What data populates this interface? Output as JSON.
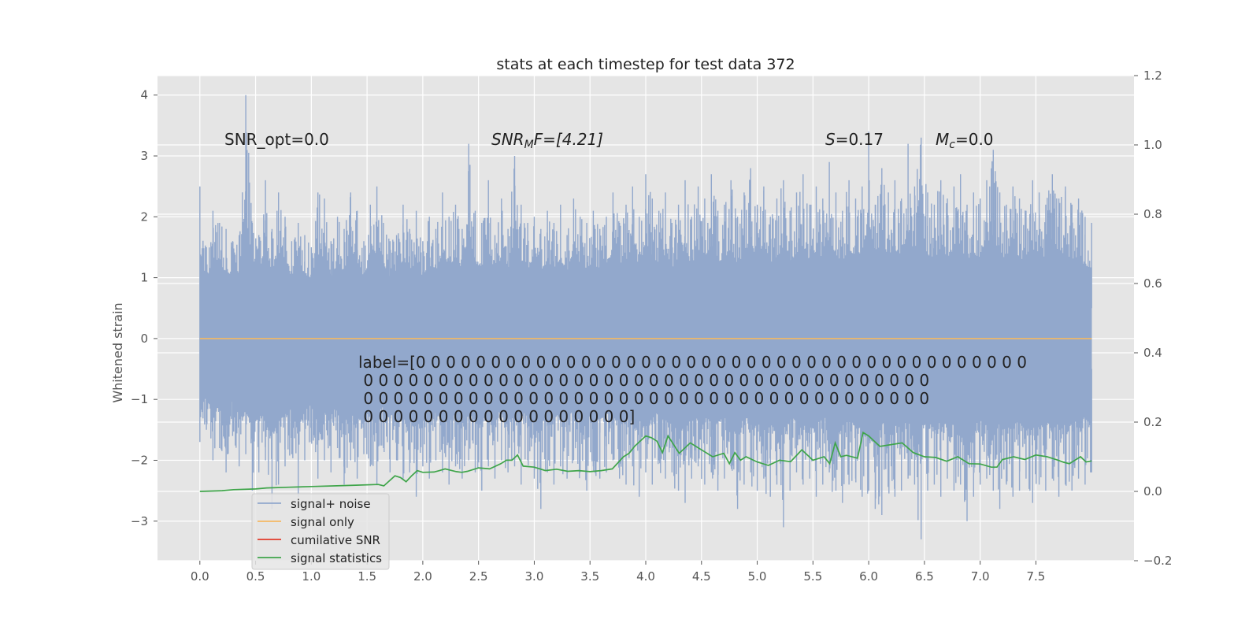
{
  "chart_data": {
    "type": "line",
    "title": "stats at each timestep for test data 372",
    "xlabel": "",
    "ylabel": "Whitened strain",
    "xlim": [
      -0.38,
      8.38
    ],
    "ylim": [
      -3.65,
      4.32
    ],
    "y2lim": [
      -0.2,
      1.2
    ],
    "x_ticks": [
      0.0,
      0.5,
      1.0,
      1.5,
      2.0,
      2.5,
      3.0,
      3.5,
      4.0,
      4.5,
      5.0,
      5.5,
      6.0,
      6.5,
      7.0,
      7.5
    ],
    "x_tick_labels": [
      "0.0",
      "0.5",
      "1.0",
      "1.5",
      "2.0",
      "2.5",
      "3.0",
      "3.5",
      "4.0",
      "4.5",
      "5.0",
      "5.5",
      "6.0",
      "6.5",
      "7.0",
      "7.5"
    ],
    "y_ticks": [
      -3,
      -2,
      -1,
      0,
      1,
      2,
      3,
      4
    ],
    "y_tick_labels": [
      "−3",
      "−2",
      "−1",
      "0",
      "1",
      "2",
      "3",
      "4"
    ],
    "y2_ticks": [
      -0.2,
      0.0,
      0.2,
      0.4,
      0.6,
      0.8,
      1.0,
      1.2
    ],
    "y2_tick_labels": [
      "−0.2",
      "0.0",
      "0.2",
      "0.4",
      "0.6",
      "0.8",
      "1.0",
      "1.2"
    ],
    "grid": true,
    "legend_position": "lower-left",
    "series": [
      {
        "name": "signal+ noise",
        "color": "#92a8cc",
        "axis": "left",
        "x_range": [
          0.0,
          8.0
        ],
        "envelope_upper": [
          2.5,
          1.5,
          2.1,
          1.9,
          1.8,
          1.6,
          1.7,
          4.0,
          1.9,
          1.7,
          2.6,
          1.8,
          2.4,
          2.0,
          1.6,
          1.9,
          1.7,
          1.5,
          2.4,
          2.3,
          1.6,
          2.0,
          1.8,
          2.4,
          2.1,
          1.6,
          2.2,
          2.5,
          1.9,
          1.6,
          1.7,
          2.2,
          1.8,
          2.1,
          1.6,
          2.0,
          1.8,
          2.4,
          2.0,
          2.2,
          1.8,
          3.2,
          2.1,
          1.9,
          2.6,
          1.7,
          2.3,
          1.8,
          3.0,
          2.2,
          1.9,
          2.0,
          1.8,
          2.1,
          1.9,
          2.2,
          1.7,
          2.3,
          2.0,
          1.9,
          2.1,
          1.8,
          2.0,
          2.4,
          1.9,
          2.2,
          2.5,
          2.0,
          2.7,
          2.3,
          2.1,
          2.4,
          1.9,
          2.2,
          2.6,
          2.0,
          2.5,
          2.3,
          2.7,
          2.1,
          2.2,
          2.6,
          2.0,
          2.4,
          2.8,
          2.2,
          2.5,
          2.0,
          2.3,
          2.6,
          2.1,
          2.4,
          2.7,
          2.2,
          2.5,
          2.3,
          2.9,
          2.4,
          2.1,
          2.6,
          2.3,
          2.5,
          3.4,
          2.2,
          2.8,
          2.4,
          2.6,
          2.3,
          3.2,
          2.5,
          3.3,
          2.4,
          2.2,
          2.6,
          2.3,
          2.5,
          2.7,
          2.2,
          2.4,
          2.3,
          2.6,
          3.1,
          2.4,
          2.2,
          2.5,
          2.3,
          2.1,
          2.6,
          2.4,
          2.2,
          2.7,
          2.3,
          2.5,
          2.2,
          2.3,
          2.0,
          1.9
        ],
        "envelope_lower": [
          -1.7,
          -1.5,
          -2.0,
          -1.8,
          -2.2,
          -1.6,
          -2.1,
          -1.9,
          -2.5,
          -2.2,
          -2.0,
          -2.8,
          -2.4,
          -2.1,
          -1.9,
          -2.6,
          -2.0,
          -1.7,
          -2.3,
          -2.0,
          -2.2,
          -1.8,
          -2.4,
          -2.0,
          -2.3,
          -1.9,
          -2.1,
          -2.4,
          -1.8,
          -2.2,
          -2.0,
          -2.3,
          -2.2,
          -2.6,
          -2.1,
          -2.3,
          -2.0,
          -2.2,
          -2.4,
          -2.1,
          -2.3,
          -2.0,
          -2.2,
          -2.5,
          -2.1,
          -2.3,
          -2.0,
          -2.2,
          -2.1,
          -2.4,
          -2.0,
          -2.3,
          -2.8,
          -2.2,
          -2.4,
          -2.1,
          -2.3,
          -2.0,
          -2.2,
          -2.5,
          -2.1,
          -2.3,
          -2.2,
          -2.0,
          -2.3,
          -2.4,
          -2.1,
          -2.6,
          -2.2,
          -2.4,
          -2.0,
          -2.3,
          -2.2,
          -2.5,
          -2.7,
          -2.3,
          -2.1,
          -2.4,
          -2.2,
          -2.5,
          -2.3,
          -2.1,
          -2.8,
          -2.4,
          -2.2,
          -2.5,
          -2.3,
          -2.6,
          -2.4,
          -3.1,
          -2.5,
          -2.2,
          -2.4,
          -2.3,
          -2.6,
          -2.4,
          -2.2,
          -2.5,
          -2.7,
          -2.4,
          -2.3,
          -2.6,
          -2.5,
          -2.8,
          -2.9,
          -2.4,
          -2.6,
          -2.5,
          -2.3,
          -2.4,
          -3.3,
          -2.5,
          -2.4,
          -2.6,
          -2.3,
          -2.5,
          -2.4,
          -3.0,
          -2.6,
          -2.4,
          -2.3,
          -2.5,
          -2.8,
          -2.4,
          -2.6,
          -2.5,
          -2.3,
          -2.7,
          -2.4,
          -2.5,
          -2.3,
          -2.6,
          -2.4,
          -2.5,
          -2.3,
          -2.4,
          -2.2,
          -2.5
        ]
      },
      {
        "name": "signal only",
        "color": "#f5b963",
        "axis": "left",
        "x": [
          0.0,
          8.0
        ],
        "y": [
          0.0,
          0.0
        ]
      },
      {
        "name": "cumilative SNR",
        "color": "#e13a2b",
        "axis": "right",
        "x": [],
        "y": []
      },
      {
        "name": "signal statistics",
        "color": "#3fa54a",
        "axis": "right",
        "x": [
          0.0,
          0.2,
          0.3,
          0.5,
          0.6,
          0.8,
          1.0,
          1.2,
          1.4,
          1.6,
          1.65,
          1.75,
          1.8,
          1.85,
          1.9,
          1.95,
          2.0,
          2.1,
          2.15,
          2.2,
          2.3,
          2.35,
          2.4,
          2.5,
          2.6,
          2.7,
          2.75,
          2.8,
          2.85,
          2.9,
          3.0,
          3.1,
          3.2,
          3.3,
          3.4,
          3.5,
          3.6,
          3.7,
          3.8,
          3.85,
          3.9,
          4.0,
          4.05,
          4.1,
          4.15,
          4.2,
          4.3,
          4.4,
          4.5,
          4.6,
          4.7,
          4.75,
          4.8,
          4.85,
          4.9,
          5.0,
          5.1,
          5.2,
          5.3,
          5.4,
          5.5,
          5.6,
          5.65,
          5.7,
          5.75,
          5.8,
          5.9,
          5.95,
          6.0,
          6.05,
          6.1,
          6.2,
          6.3,
          6.4,
          6.5,
          6.6,
          6.7,
          6.8,
          6.9,
          7.0,
          7.1,
          7.15,
          7.2,
          7.3,
          7.4,
          7.5,
          7.6,
          7.7,
          7.75,
          7.8,
          7.9,
          7.95,
          8.0
        ],
        "y": [
          0.0,
          0.002,
          0.005,
          0.007,
          0.01,
          0.012,
          0.014,
          0.016,
          0.018,
          0.02,
          0.016,
          0.045,
          0.04,
          0.028,
          0.045,
          0.06,
          0.055,
          0.056,
          0.06,
          0.065,
          0.057,
          0.055,
          0.058,
          0.068,
          0.065,
          0.08,
          0.09,
          0.09,
          0.105,
          0.073,
          0.07,
          0.06,
          0.064,
          0.058,
          0.06,
          0.057,
          0.06,
          0.065,
          0.1,
          0.11,
          0.13,
          0.16,
          0.155,
          0.145,
          0.112,
          0.16,
          0.11,
          0.14,
          0.12,
          0.1,
          0.11,
          0.08,
          0.112,
          0.09,
          0.1,
          0.085,
          0.075,
          0.09,
          0.086,
          0.12,
          0.09,
          0.1,
          0.08,
          0.14,
          0.1,
          0.104,
          0.096,
          0.17,
          0.16,
          0.145,
          0.13,
          0.135,
          0.14,
          0.112,
          0.1,
          0.098,
          0.087,
          0.1,
          0.08,
          0.079,
          0.07,
          0.07,
          0.092,
          0.1,
          0.092,
          0.105,
          0.1,
          0.09,
          0.084,
          0.08,
          0.1,
          0.085,
          0.088
        ]
      }
    ],
    "annotations": {
      "snr_opt": "SNR_opt=0.0",
      "snr_mf_sym": "SNR",
      "snr_mf_sub": "M",
      "snr_mf_rest": "F=[4.21]",
      "s_sym": "S",
      "s_rest": "=0.17",
      "mc_sym": "M",
      "mc_sub": "c",
      "mc_rest": "=0.0",
      "label_lines": [
        "label=[0 0 0 0 0 0 0 0 0 0 0 0 0 0 0 0 0 0 0 0 0 0 0 0 0 0 0 0 0 0 0 0 0 0 0 0 0 0 0 0 0",
        " 0 0 0 0 0 0 0 0 0 0 0 0 0 0 0 0 0 0 0 0 0 0 0 0 0 0 0 0 0 0 0 0 0 0 0 0 0 0",
        " 0 0 0 0 0 0 0 0 0 0 0 0 0 0 0 0 0 0 0 0 0 0 0 0 0 0 0 0 0 0 0 0 0 0 0 0 0 0",
        " 0 0 0 0 0 0 0 0 0 0 0 0 0 0 0 0 0 0]"
      ]
    }
  }
}
